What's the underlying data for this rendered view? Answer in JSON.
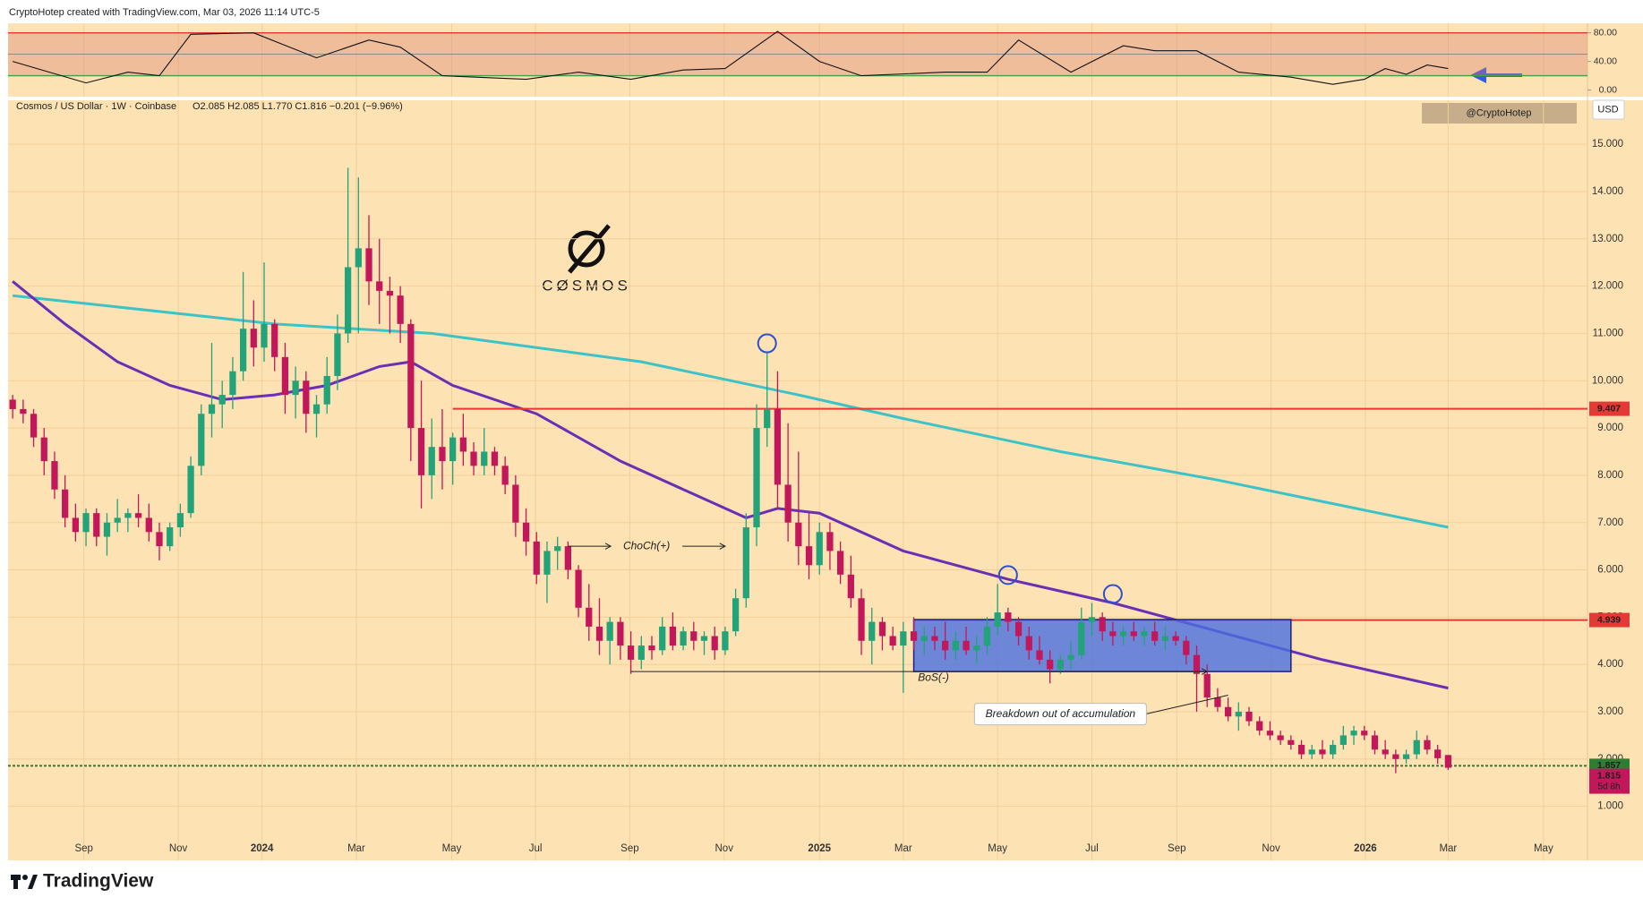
{
  "header": "CryptoHotep created with TradingView.com, Mar 03, 2026 11:14 UTC-5",
  "footer": "TradingView",
  "watermark": "@CryptoHotep",
  "currency": "USD",
  "logo_text": "CØSMOS",
  "chart_data": {
    "type": "candlestick",
    "title": "Cosmos / US Dollar · 1W · Coinbase",
    "legend_values": "O2.085  H2.085  L1.770  C1.816  −0.201 (−9.96%)",
    "up_color": "#22a37a",
    "down_color": "#c2185b",
    "grid": true,
    "xlim": [
      -0.44,
      150.3
    ],
    "ylim": [
      0.35,
      15.93
    ],
    "yticks": [
      {
        "value": 1,
        "label": "1.000"
      },
      {
        "value": 2,
        "label": "2.000"
      },
      {
        "value": 3,
        "label": "3.000"
      },
      {
        "value": 4,
        "label": "4.000"
      },
      {
        "value": 5,
        "label": "5.000"
      },
      {
        "value": 6,
        "label": "6.000"
      },
      {
        "value": 7,
        "label": "7.000"
      },
      {
        "value": 8,
        "label": "8.000"
      },
      {
        "value": 9,
        "label": "9.000"
      },
      {
        "value": 10,
        "label": "10.000"
      },
      {
        "value": 11,
        "label": "11.000"
      },
      {
        "value": 12,
        "label": "12.000"
      },
      {
        "value": 13,
        "label": "13.000"
      },
      {
        "value": 14,
        "label": "14.000"
      },
      {
        "value": 15,
        "label": "15.000"
      }
    ],
    "xticks": [
      {
        "value": 6.8,
        "label": "Sep"
      },
      {
        "value": 15.8,
        "label": "Nov"
      },
      {
        "value": 23.8,
        "label": "2024"
      },
      {
        "value": 32.8,
        "label": "Mar"
      },
      {
        "value": 41.9,
        "label": "May"
      },
      {
        "value": 49.9,
        "label": "Jul"
      },
      {
        "value": 58.9,
        "label": "Sep"
      },
      {
        "value": 67.9,
        "label": "Nov"
      },
      {
        "value": 77,
        "label": "2025"
      },
      {
        "value": 85,
        "label": "Mar"
      },
      {
        "value": 94,
        "label": "May"
      },
      {
        "value": 103,
        "label": "Jul"
      },
      {
        "value": 111.1,
        "label": "Sep"
      },
      {
        "value": 120.1,
        "label": "Nov"
      },
      {
        "value": 129.1,
        "label": "2026"
      },
      {
        "value": 137,
        "label": "Mar"
      },
      {
        "value": 146.1,
        "label": "May"
      }
    ],
    "candles": [
      [
        9.6,
        9.7,
        9.2,
        9.4
      ],
      [
        9.4,
        9.6,
        9.1,
        9.3
      ],
      [
        9.3,
        9.4,
        8.6,
        8.8
      ],
      [
        8.8,
        9.0,
        8.0,
        8.3
      ],
      [
        8.3,
        8.5,
        7.5,
        7.7
      ],
      [
        7.7,
        8.0,
        6.9,
        7.1
      ],
      [
        7.1,
        7.4,
        6.6,
        6.8
      ],
      [
        6.8,
        7.3,
        6.5,
        7.2
      ],
      [
        7.2,
        7.3,
        6.5,
        6.7
      ],
      [
        6.7,
        7.2,
        6.3,
        7.0
      ],
      [
        7.0,
        7.5,
        6.8,
        7.1
      ],
      [
        7.1,
        7.3,
        6.8,
        7.2
      ],
      [
        7.2,
        7.6,
        6.9,
        7.1
      ],
      [
        7.1,
        7.4,
        6.6,
        6.8
      ],
      [
        6.8,
        7.0,
        6.2,
        6.5
      ],
      [
        6.5,
        7.0,
        6.4,
        6.9
      ],
      [
        6.9,
        7.4,
        6.7,
        7.2
      ],
      [
        7.2,
        8.4,
        7.1,
        8.2
      ],
      [
        8.2,
        9.5,
        8.0,
        9.3
      ],
      [
        9.3,
        10.8,
        8.8,
        9.5
      ],
      [
        9.5,
        10.0,
        9.0,
        9.7
      ],
      [
        9.7,
        10.5,
        9.4,
        10.2
      ],
      [
        10.2,
        12.3,
        10.0,
        11.1
      ],
      [
        11.1,
        11.7,
        10.3,
        10.7
      ],
      [
        10.7,
        12.5,
        10.4,
        11.2
      ],
      [
        11.2,
        11.3,
        10.2,
        10.5
      ],
      [
        10.5,
        10.8,
        9.3,
        9.7
      ],
      [
        9.7,
        10.3,
        9.2,
        10.0
      ],
      [
        10.0,
        10.2,
        8.9,
        9.3
      ],
      [
        9.3,
        9.7,
        8.8,
        9.5
      ],
      [
        9.5,
        10.5,
        9.3,
        10.1
      ],
      [
        10.1,
        11.4,
        9.8,
        11.0
      ],
      [
        11.0,
        14.5,
        10.8,
        12.4
      ],
      [
        12.4,
        14.3,
        11.0,
        12.8
      ],
      [
        12.8,
        13.5,
        11.6,
        12.1
      ],
      [
        12.1,
        13.0,
        11.2,
        11.9
      ],
      [
        11.9,
        12.2,
        11.0,
        11.8
      ],
      [
        11.8,
        12.0,
        10.8,
        11.2
      ],
      [
        11.2,
        11.3,
        8.3,
        9.0
      ],
      [
        9.0,
        10.0,
        7.3,
        8.0
      ],
      [
        8.0,
        9.2,
        7.5,
        8.6
      ],
      [
        8.6,
        9.4,
        7.7,
        8.3
      ],
      [
        8.3,
        8.9,
        7.8,
        8.8
      ],
      [
        8.8,
        9.3,
        8.2,
        8.5
      ],
      [
        8.5,
        8.7,
        8.0,
        8.2
      ],
      [
        8.2,
        9.0,
        8.0,
        8.5
      ],
      [
        8.5,
        8.6,
        8.0,
        8.2
      ],
      [
        8.2,
        8.4,
        7.6,
        7.8
      ],
      [
        7.8,
        8.0,
        6.7,
        7.0
      ],
      [
        7.0,
        7.3,
        6.3,
        6.6
      ],
      [
        6.6,
        6.8,
        5.7,
        5.9
      ],
      [
        5.9,
        6.6,
        5.3,
        6.4
      ],
      [
        6.4,
        6.7,
        6.0,
        6.5
      ],
      [
        6.5,
        6.6,
        5.8,
        6.0
      ],
      [
        6.0,
        6.1,
        5.0,
        5.2
      ],
      [
        5.2,
        5.7,
        4.5,
        4.8
      ],
      [
        4.8,
        5.4,
        4.2,
        4.5
      ],
      [
        4.5,
        5.0,
        4.0,
        4.9
      ],
      [
        4.9,
        5.0,
        4.1,
        4.4
      ],
      [
        4.4,
        4.7,
        3.8,
        4.1
      ],
      [
        4.1,
        4.6,
        3.9,
        4.4
      ],
      [
        4.4,
        4.6,
        4.1,
        4.3
      ],
      [
        4.3,
        5.0,
        4.2,
        4.8
      ],
      [
        4.8,
        5.1,
        4.3,
        4.4
      ],
      [
        4.4,
        4.8,
        4.3,
        4.7
      ],
      [
        4.7,
        4.9,
        4.3,
        4.5
      ],
      [
        4.5,
        4.7,
        4.2,
        4.6
      ],
      [
        4.6,
        4.8,
        4.1,
        4.3
      ],
      [
        4.3,
        4.8,
        4.2,
        4.7
      ],
      [
        4.7,
        5.6,
        4.6,
        5.4
      ],
      [
        5.4,
        7.2,
        5.2,
        6.9
      ],
      [
        6.9,
        9.5,
        6.5,
        9.0
      ],
      [
        9.0,
        10.6,
        8.6,
        9.4
      ],
      [
        9.4,
        10.2,
        7.3,
        7.8
      ],
      [
        7.8,
        9.1,
        6.6,
        7.0
      ],
      [
        7.0,
        8.5,
        6.1,
        6.5
      ],
      [
        6.5,
        7.2,
        5.8,
        6.1
      ],
      [
        6.1,
        7.0,
        5.9,
        6.8
      ],
      [
        6.8,
        7.0,
        6.0,
        6.4
      ],
      [
        6.4,
        6.6,
        5.7,
        5.9
      ],
      [
        5.9,
        6.3,
        5.2,
        5.4
      ],
      [
        5.4,
        5.6,
        4.2,
        4.5
      ],
      [
        4.5,
        5.2,
        4.0,
        4.9
      ],
      [
        4.9,
        5.0,
        4.3,
        4.6
      ],
      [
        4.6,
        4.8,
        4.3,
        4.4
      ],
      [
        4.4,
        4.9,
        3.4,
        4.7
      ],
      [
        4.7,
        5.0,
        4.3,
        4.5
      ],
      [
        4.5,
        4.8,
        4.2,
        4.6
      ],
      [
        4.6,
        4.8,
        4.3,
        4.5
      ],
      [
        4.5,
        4.9,
        4.1,
        4.3
      ],
      [
        4.3,
        4.7,
        4.1,
        4.5
      ],
      [
        4.5,
        4.8,
        4.2,
        4.3
      ],
      [
        4.3,
        4.6,
        4.0,
        4.4
      ],
      [
        4.4,
        5.0,
        4.2,
        4.8
      ],
      [
        4.8,
        5.7,
        4.6,
        5.1
      ],
      [
        5.1,
        5.2,
        4.7,
        4.9
      ],
      [
        4.9,
        5.0,
        4.4,
        4.6
      ],
      [
        4.6,
        4.8,
        4.1,
        4.3
      ],
      [
        4.3,
        4.6,
        4.0,
        4.1
      ],
      [
        4.1,
        4.3,
        3.6,
        3.9
      ],
      [
        3.9,
        4.2,
        3.8,
        4.1
      ],
      [
        4.1,
        4.5,
        3.9,
        4.2
      ],
      [
        4.2,
        5.2,
        4.1,
        4.9
      ],
      [
        4.9,
        5.3,
        4.6,
        5.0
      ],
      [
        5.0,
        5.1,
        4.5,
        4.7
      ],
      [
        4.7,
        4.9,
        4.4,
        4.6
      ],
      [
        4.6,
        4.8,
        4.4,
        4.7
      ],
      [
        4.7,
        4.9,
        4.5,
        4.6
      ],
      [
        4.6,
        4.8,
        4.4,
        4.7
      ],
      [
        4.7,
        4.9,
        4.4,
        4.5
      ],
      [
        4.5,
        4.8,
        4.3,
        4.6
      ],
      [
        4.6,
        4.7,
        4.4,
        4.5
      ],
      [
        4.5,
        4.6,
        4.0,
        4.2
      ],
      [
        4.2,
        4.4,
        3.0,
        3.8
      ],
      [
        3.8,
        4.0,
        3.1,
        3.3
      ],
      [
        3.3,
        3.5,
        3.0,
        3.1
      ],
      [
        3.1,
        3.3,
        2.8,
        2.9
      ],
      [
        2.9,
        3.2,
        2.6,
        3.0
      ],
      [
        3.0,
        3.1,
        2.7,
        2.8
      ],
      [
        2.8,
        2.9,
        2.5,
        2.6
      ],
      [
        2.6,
        2.8,
        2.4,
        2.5
      ],
      [
        2.5,
        2.6,
        2.3,
        2.4
      ],
      [
        2.4,
        2.5,
        2.2,
        2.3
      ],
      [
        2.3,
        2.4,
        2.0,
        2.1
      ],
      [
        2.1,
        2.3,
        2.0,
        2.2
      ],
      [
        2.2,
        2.4,
        2.0,
        2.1
      ],
      [
        2.1,
        2.4,
        2.0,
        2.3
      ],
      [
        2.3,
        2.7,
        2.2,
        2.5
      ],
      [
        2.5,
        2.7,
        2.3,
        2.6
      ],
      [
        2.6,
        2.7,
        2.4,
        2.5
      ],
      [
        2.5,
        2.6,
        2.1,
        2.2
      ],
      [
        2.2,
        2.4,
        2.0,
        2.1
      ],
      [
        2.1,
        2.2,
        1.7,
        2.0
      ],
      [
        2.0,
        2.2,
        1.9,
        2.1
      ],
      [
        2.1,
        2.6,
        2.0,
        2.4
      ],
      [
        2.4,
        2.5,
        2.1,
        2.2
      ],
      [
        2.2,
        2.3,
        1.9,
        2.017
      ],
      [
        2.085,
        2.085,
        1.77,
        1.816
      ]
    ],
    "moving_averages": [
      {
        "color": "#3cc3c8",
        "x": [
          0,
          25,
          40,
          60,
          75,
          85,
          100,
          115,
          137
        ],
        "values": [
          11.8,
          11.2,
          11.0,
          10.4,
          9.7,
          9.2,
          8.5,
          7.9,
          6.9
        ]
      },
      {
        "color": "#6a2fb5",
        "x": [
          0,
          5,
          10,
          15,
          20,
          25,
          30,
          35,
          38,
          42,
          50,
          58,
          65,
          70,
          73,
          77,
          85,
          95,
          105,
          115,
          125,
          137
        ],
        "values": [
          12.1,
          11.2,
          10.4,
          9.9,
          9.6,
          9.7,
          9.9,
          10.3,
          10.4,
          9.9,
          9.3,
          8.3,
          7.6,
          7.1,
          7.3,
          7.2,
          6.4,
          5.8,
          5.3,
          4.7,
          4.1,
          3.5
        ]
      }
    ],
    "levels": [
      {
        "value": 9.407,
        "start": 42,
        "color": "#e53935"
      },
      {
        "value": 4.939,
        "start": 86,
        "color": "#e53935"
      },
      {
        "value": 1.857,
        "color": "#2e7d32",
        "dashed": true
      }
    ],
    "last_price": {
      "value": 1.815,
      "countdown": "5d 8h",
      "color": "#c2185b"
    },
    "box": {
      "x": [
        86,
        122
      ],
      "y": [
        3.85,
        4.95
      ],
      "color": "#4a6fe0"
    },
    "circles": [
      [
        72,
        10.6
      ],
      [
        95,
        5.7
      ],
      [
        105,
        5.3
      ]
    ],
    "annotations": [
      {
        "text": "ChoCh(+)",
        "x": [
          53,
          68
        ],
        "y": 6.5
      },
      {
        "text": "BoS(-)",
        "x": [
          59,
          114
        ],
        "y": 3.85
      },
      {
        "text": "Breakdown out of accumulation",
        "at": [
          100,
          2.95
        ],
        "to": [
          116,
          3.35
        ]
      }
    ],
    "oscillator": {
      "ylim": [
        -9.3,
        93.4
      ],
      "yticks": [
        {
          "value": 80,
          "label": "80.00"
        },
        {
          "value": 40,
          "label": "40.00"
        },
        {
          "value": 0,
          "label": "0.00"
        }
      ],
      "levels": [
        80,
        50,
        20
      ],
      "level_colors": [
        "#e53935",
        "#777777",
        "#43a047"
      ],
      "color": "#111111",
      "x": [
        0,
        7,
        11,
        14,
        17,
        23,
        29,
        34,
        37,
        41,
        49,
        54,
        59,
        64,
        68,
        73,
        77,
        81,
        89,
        93,
        96,
        101,
        106,
        109,
        113,
        117,
        122,
        126,
        129,
        131,
        133,
        135,
        137
      ],
      "values": [
        40,
        10,
        25,
        20,
        78,
        80,
        45,
        70,
        60,
        20,
        15,
        25,
        15,
        28,
        30,
        82,
        40,
        20,
        25,
        25,
        70,
        25,
        62,
        55,
        55,
        25,
        18,
        8,
        15,
        30,
        22,
        35,
        30
      ]
    }
  }
}
